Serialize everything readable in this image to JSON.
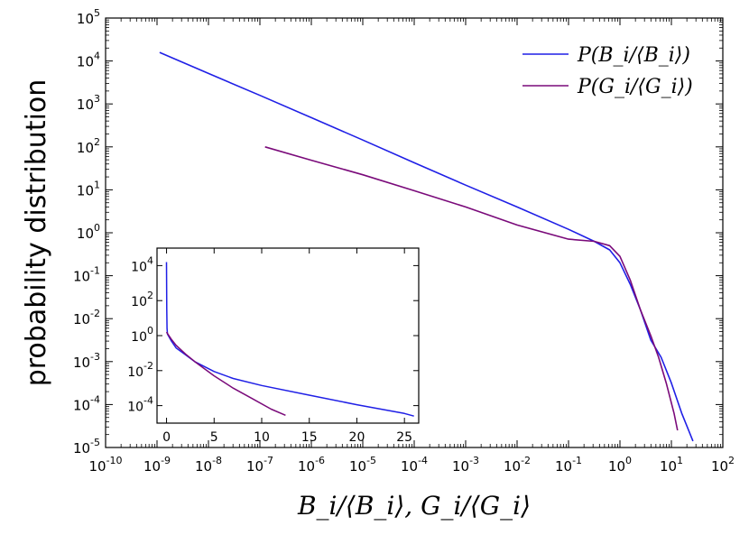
{
  "chart_data": [
    {
      "type": "line",
      "id": "main",
      "xscale": "log",
      "yscale": "log",
      "xlim_exp": [
        -10,
        2
      ],
      "ylim_exp": [
        -5,
        5
      ],
      "x_tick_labels": [
        {
          "base": "10",
          "exp": "-10"
        },
        {
          "base": "10",
          "exp": "-9"
        },
        {
          "base": "10",
          "exp": "-8"
        },
        {
          "base": "10",
          "exp": "-7"
        },
        {
          "base": "10",
          "exp": "-6"
        },
        {
          "base": "10",
          "exp": "-5"
        },
        {
          "base": "10",
          "exp": "-4"
        },
        {
          "base": "10",
          "exp": "-3"
        },
        {
          "base": "10",
          "exp": "-2"
        },
        {
          "base": "10",
          "exp": "-1"
        },
        {
          "base": "10",
          "exp": "0"
        },
        {
          "base": "10",
          "exp": "1"
        },
        {
          "base": "10",
          "exp": "2"
        }
      ],
      "y_tick_labels": [
        {
          "base": "10",
          "exp": "-5"
        },
        {
          "base": "10",
          "exp": "-4"
        },
        {
          "base": "10",
          "exp": "-3"
        },
        {
          "base": "10",
          "exp": "-2"
        },
        {
          "base": "10",
          "exp": "-1"
        },
        {
          "base": "10",
          "exp": "0"
        },
        {
          "base": "10",
          "exp": "1"
        },
        {
          "base": "10",
          "exp": "2"
        },
        {
          "base": "10",
          "exp": "3"
        },
        {
          "base": "10",
          "exp": "4"
        },
        {
          "base": "10",
          "exp": "5"
        }
      ],
      "xlabel": "B_i/⟨B_i⟩, G_i/⟨G_i⟩",
      "ylabel": "probability distribution",
      "legend_position": "top-right",
      "series": [
        {
          "name": "P(B_i/⟨B_i⟩)",
          "color": "#1f1fe6",
          "points_log10": [
            [
              -8.95,
              4.2
            ],
            [
              -8.0,
              3.71
            ],
            [
              -7.0,
              3.2
            ],
            [
              -6.0,
              2.68
            ],
            [
              -5.0,
              2.16
            ],
            [
              -4.0,
              1.63
            ],
            [
              -3.0,
              1.11
            ],
            [
              -2.0,
              0.6
            ],
            [
              -1.0,
              0.08
            ],
            [
              -0.5,
              -0.2
            ],
            [
              -0.2,
              -0.4
            ],
            [
              0.0,
              -0.7
            ],
            [
              0.2,
              -1.2
            ],
            [
              0.4,
              -1.8
            ],
            [
              0.6,
              -2.5
            ],
            [
              0.8,
              -2.9
            ],
            [
              1.0,
              -3.5
            ],
            [
              1.2,
              -4.2
            ],
            [
              1.42,
              -4.85
            ]
          ]
        },
        {
          "name": "P(G_i/⟨G_i⟩)",
          "color": "#7a0a7a",
          "points_log10": [
            [
              -6.9,
              2.0
            ],
            [
              -6.0,
              1.69
            ],
            [
              -5.0,
              1.35
            ],
            [
              -4.0,
              0.98
            ],
            [
              -3.0,
              0.6
            ],
            [
              -2.0,
              0.18
            ],
            [
              -1.0,
              -0.15
            ],
            [
              -0.5,
              -0.2
            ],
            [
              -0.2,
              -0.3
            ],
            [
              0.0,
              -0.55
            ],
            [
              0.2,
              -1.1
            ],
            [
              0.4,
              -1.8
            ],
            [
              0.6,
              -2.4
            ],
            [
              0.75,
              -2.9
            ],
            [
              0.9,
              -3.5
            ],
            [
              1.05,
              -4.2
            ],
            [
              1.12,
              -4.6
            ]
          ]
        }
      ]
    },
    {
      "type": "line",
      "id": "inset",
      "xscale": "linear",
      "yscale": "log",
      "xlim": [
        -1,
        26.5
      ],
      "ylim_exp": [
        -5,
        5
      ],
      "x_ticks": [
        0,
        5,
        10,
        15,
        20,
        25
      ],
      "x_tick_labels": [
        "0",
        "5",
        "10",
        "15",
        "20",
        "25"
      ],
      "y_ticks_exp": [
        -4,
        -2,
        0,
        2,
        4
      ],
      "y_tick_labels": [
        {
          "base": "10",
          "exp": "-4"
        },
        {
          "base": "10",
          "exp": "-2"
        },
        {
          "base": "10",
          "exp": "0"
        },
        {
          "base": "10",
          "exp": "2"
        },
        {
          "base": "10",
          "exp": "4"
        }
      ],
      "series": [
        {
          "name": "P(B_i/⟨B_i⟩)",
          "color": "#1f1fe6",
          "points": [
            [
              0.0,
              4.2
            ],
            [
              0.02,
              1.5
            ],
            [
              0.05,
              0.4
            ],
            [
              0.1,
              0.08
            ],
            [
              0.5,
              -0.3
            ],
            [
              1.0,
              -0.7
            ],
            [
              2.0,
              -1.1
            ],
            [
              3.0,
              -1.5
            ],
            [
              5.0,
              -2.05
            ],
            [
              7.0,
              -2.45
            ],
            [
              10.0,
              -2.85
            ],
            [
              15.0,
              -3.4
            ],
            [
              20.0,
              -3.95
            ],
            [
              25.0,
              -4.45
            ],
            [
              26.0,
              -4.6
            ]
          ]
        },
        {
          "name": "P(G_i/⟨G_i⟩)",
          "color": "#7a0a7a",
          "points": [
            [
              0.0,
              0.2
            ],
            [
              0.5,
              -0.2
            ],
            [
              1.0,
              -0.55
            ],
            [
              2.0,
              -1.05
            ],
            [
              3.0,
              -1.5
            ],
            [
              5.0,
              -2.3
            ],
            [
              7.0,
              -3.0
            ],
            [
              9.0,
              -3.6
            ],
            [
              11.0,
              -4.2
            ],
            [
              12.5,
              -4.55
            ]
          ]
        }
      ]
    }
  ]
}
